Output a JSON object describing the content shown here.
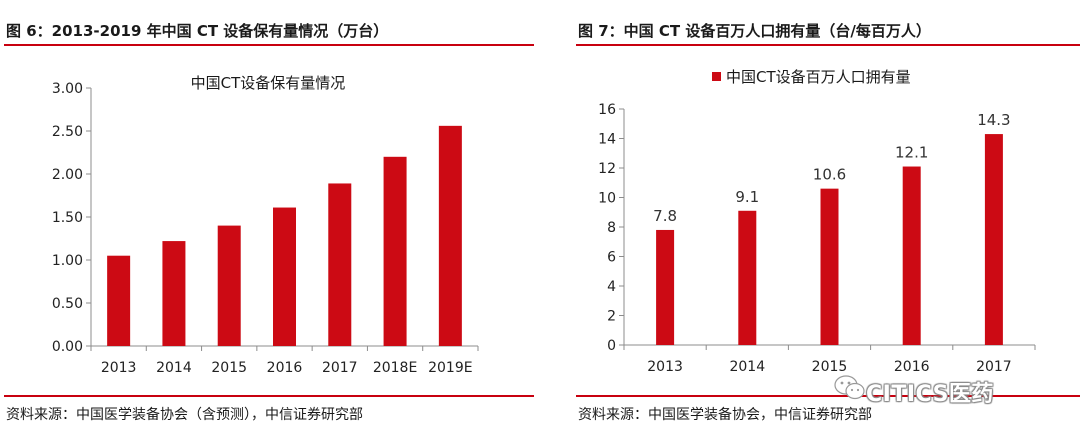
{
  "left": {
    "figure_title": "图 6：2013-2019 年中国 CT 设备保有量情况（万台）",
    "source": "资料来源：中国医学装备协会（含预测），中信证券研究部"
  },
  "right": {
    "figure_title": "图 7：中国 CT 设备百万人口拥有量（台/每百万人）",
    "source": "资料来源：中国医学装备协会，中信证券研究部"
  },
  "watermark": "CITICS医药",
  "colors": {
    "bar": "#cc0a14",
    "rule": "#c8000f"
  },
  "chart_data": [
    {
      "type": "bar",
      "title": "中国CT设备保有量情况",
      "categories": [
        "2013",
        "2014",
        "2015",
        "2016",
        "2017",
        "2018E",
        "2019E"
      ],
      "values": [
        1.05,
        1.22,
        1.4,
        1.61,
        1.89,
        2.2,
        2.56
      ],
      "ylim": [
        0,
        3.0
      ],
      "yticks": [
        "0.00",
        "0.50",
        "1.00",
        "1.50",
        "2.00",
        "2.50",
        "3.00"
      ],
      "xlabel": "",
      "ylabel": "",
      "legend": null,
      "grid": false
    },
    {
      "type": "bar",
      "title": "",
      "legend": [
        "中国CT设备百万人口拥有量"
      ],
      "legend_position": "top",
      "categories": [
        "2013",
        "2014",
        "2015",
        "2016",
        "2017"
      ],
      "values": [
        7.8,
        9.1,
        10.6,
        12.1,
        14.3
      ],
      "data_labels": [
        "7.8",
        "9.1",
        "10.6",
        "12.1",
        "14.3"
      ],
      "ylim": [
        0,
        16
      ],
      "yticks": [
        "0",
        "2",
        "4",
        "6",
        "8",
        "10",
        "12",
        "14",
        "16"
      ],
      "xlabel": "",
      "ylabel": "",
      "grid": false
    }
  ]
}
